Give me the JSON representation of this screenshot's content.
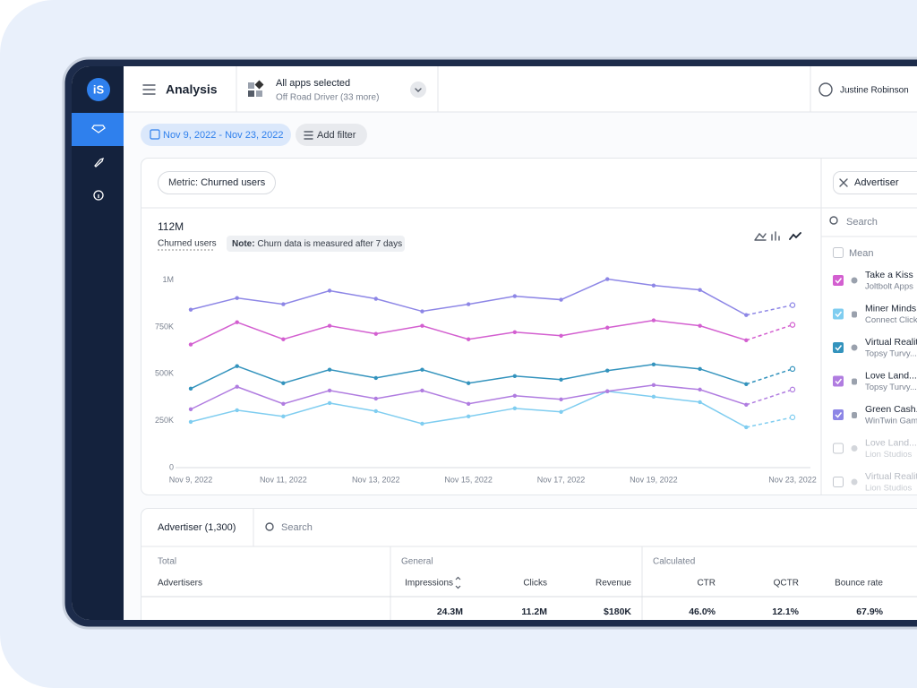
{
  "header": {
    "title": "Analysis",
    "app_selector": {
      "title": "All apps selected",
      "subtitle": "Off Road Driver (33 more)"
    },
    "user": "Justine Robinson"
  },
  "filters": {
    "date_range": "Nov 9, 2022 - Nov 23, 2022",
    "add_filter": "Add filter"
  },
  "metric": {
    "label": "Metric:",
    "value": "Churned users"
  },
  "summary": {
    "total": "112M",
    "total_label": "Churned users",
    "note_label": "Note:",
    "note": "Churn data is measured after 7 days"
  },
  "chart_data": {
    "type": "line",
    "categories": [
      "Nov 9, 2022",
      null,
      "Nov 11, 2022",
      null,
      "Nov 13, 2022",
      null,
      "Nov 15, 2022",
      null,
      "Nov 17, 2022",
      null,
      "Nov 19, 2022",
      null,
      null,
      "Nov 23, 2022"
    ],
    "series": [
      {
        "name": "Take a Kiss",
        "company": "Joltbolt Apps",
        "platform": "apple",
        "checked": true,
        "color": "#d35fd0",
        "values": [
          656000,
          775000,
          684000,
          756000,
          713000,
          756000,
          684000,
          722000,
          703000,
          746000,
          785000,
          756000,
          679000,
          761000
        ]
      },
      {
        "name": "Miner Minds",
        "company": "Connect Click",
        "platform": "android",
        "checked": true,
        "color": "#7fcdf0",
        "values": [
          244000,
          306000,
          273000,
          344000,
          301000,
          234000,
          273000,
          316000,
          297000,
          407000,
          378000,
          349000,
          215000,
          268000
        ]
      },
      {
        "name": "Virtual Reality",
        "company": "Topsy Turvy...",
        "platform": "apple",
        "checked": true,
        "color": "#3393bd",
        "values": [
          421000,
          541000,
          450000,
          522000,
          478000,
          522000,
          450000,
          488000,
          469000,
          517000,
          550000,
          526000,
          445000,
          526000
        ]
      },
      {
        "name": "Love Land...",
        "company": "Topsy Turvy...",
        "platform": "android",
        "checked": true,
        "color": "#b07ce0",
        "values": [
          311000,
          431000,
          340000,
          411000,
          368000,
          411000,
          340000,
          383000,
          364000,
          407000,
          440000,
          416000,
          335000,
          416000
        ]
      },
      {
        "name": "Green Cash...",
        "company": "WinTwin Games",
        "platform": "android",
        "checked": true,
        "color": "#8d86e6",
        "values": [
          842000,
          904000,
          871000,
          943000,
          900000,
          833000,
          871000,
          914000,
          895000,
          1005000,
          971000,
          947000,
          813000,
          866000
        ]
      }
    ],
    "ylim": [
      0,
      1060000
    ],
    "yticks": [
      0,
      {
        "value": 250000,
        "label": "250K"
      },
      {
        "value": 500000,
        "label": "500K"
      },
      {
        "value": 750000,
        "label": "750K"
      },
      {
        "value": 1000000,
        "label": "1M"
      }
    ],
    "grid": false,
    "dashed_from": 12
  },
  "legend_panel": {
    "button": "Advertiser",
    "search": "Search",
    "mean": "Mean",
    "unchecked": [
      {
        "name": "Love Land...",
        "company": "Lion Studios",
        "platform": "apple"
      },
      {
        "name": "Virtual Reality",
        "company": "Lion Studios",
        "platform": "apple"
      }
    ]
  },
  "table": {
    "title": "Advertiser (1,300)",
    "search": "Search",
    "groups": [
      "Total",
      "General",
      "Calculated"
    ],
    "columns": [
      "Advertisers",
      "Impressions",
      "Clicks",
      "Revenue",
      "CTR",
      "QCTR",
      "Bounce rate"
    ],
    "totals": [
      "24.3M",
      "11.2M",
      "$180K",
      "46.0%",
      "12.1%",
      "67.9%"
    ]
  }
}
